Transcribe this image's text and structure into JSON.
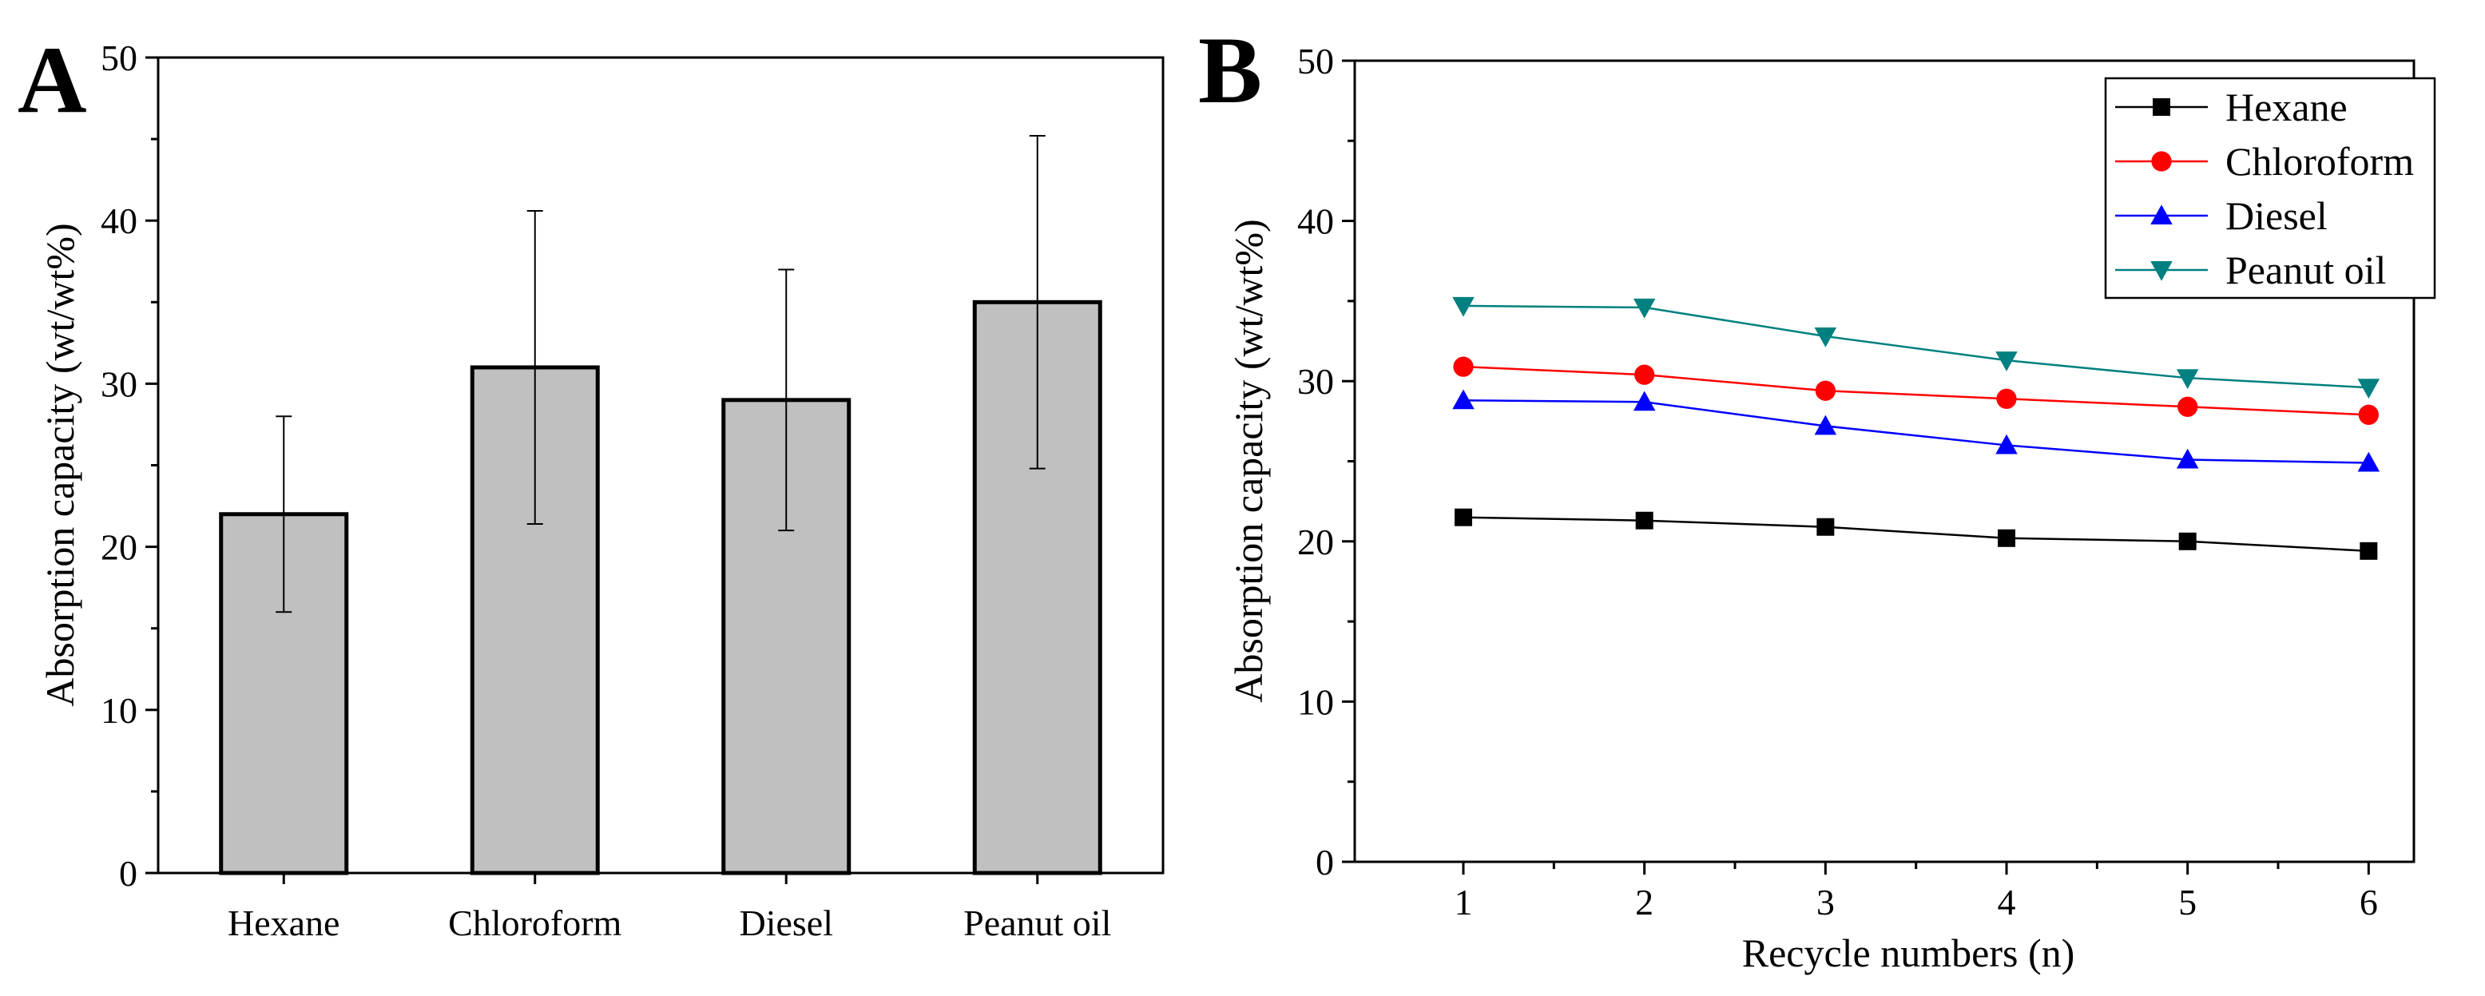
{
  "chart_data": [
    {
      "type": "bar",
      "panel": "A",
      "title": "",
      "xlabel": "",
      "ylabel": "Absorption capacity (wt/wt%)",
      "ylim": [
        0,
        50
      ],
      "yticks": [
        0,
        10,
        20,
        30,
        40,
        50
      ],
      "categories": [
        "Hexane",
        "Chloroform",
        "Diesel",
        "Peanut oil"
      ],
      "values": [
        22,
        31,
        29,
        35
      ],
      "errors": [
        6,
        9.6,
        8,
        10.2
      ],
      "bar_color": "#c0c0c0",
      "grid": false
    },
    {
      "type": "line",
      "panel": "B",
      "title": "",
      "xlabel": "Recycle numbers (n)",
      "ylabel": "Absorption capacity (wt/wt%)",
      "ylim": [
        0,
        50
      ],
      "yticks": [
        0,
        10,
        20,
        30,
        40,
        50
      ],
      "xlim": [
        0.4,
        6.25
      ],
      "x": [
        1,
        2,
        3,
        4,
        5,
        6
      ],
      "legend_position": "top-right",
      "grid": false,
      "series": [
        {
          "name": "Hexane",
          "color": "#000000",
          "marker": "square",
          "values": [
            21.5,
            21.3,
            20.9,
            20.2,
            20.0,
            19.4
          ]
        },
        {
          "name": "Chloroform",
          "color": "#ff0000",
          "marker": "circle",
          "values": [
            30.9,
            30.4,
            29.4,
            28.9,
            28.4,
            27.9
          ]
        },
        {
          "name": "Diesel",
          "color": "#0000ff",
          "marker": "triangle-up",
          "values": [
            28.8,
            28.7,
            27.2,
            26.0,
            25.1,
            24.9
          ]
        },
        {
          "name": "Peanut oil",
          "color": "#008080",
          "marker": "triangle-down",
          "values": [
            34.7,
            34.6,
            32.8,
            31.3,
            30.2,
            29.6
          ]
        }
      ]
    }
  ]
}
